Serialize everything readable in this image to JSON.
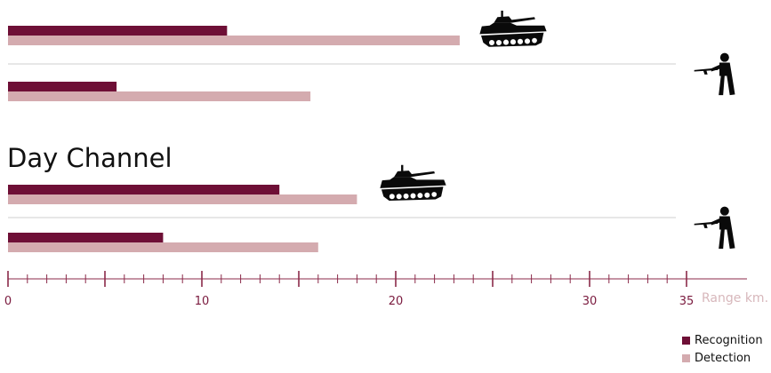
{
  "colors": {
    "recognition": "#6e0f36",
    "detection": "#d4abaf",
    "axis": "#8b2a4a",
    "tick_label": "#7a1a3e",
    "separator": "#cfcfcf",
    "icon": "#0a0a0a"
  },
  "section_title": "Day Channel",
  "range_label": "Range km.",
  "legend": [
    {
      "label": "Recognition",
      "color": "#6e0f36"
    },
    {
      "label": "Detection",
      "color": "#d4abaf"
    }
  ],
  "icons": [
    "tank-icon",
    "soldier-icon",
    "tank-icon",
    "soldier-icon"
  ],
  "chart_data": {
    "type": "bar",
    "orientation": "horizontal",
    "xlim": [
      0,
      35
    ],
    "ticks": [
      0,
      10,
      20,
      30,
      35
    ],
    "grid": false,
    "legend_position": "bottom-right",
    "groups": [
      {
        "target": "tank",
        "recognition": 11.3,
        "detection": 23.3
      },
      {
        "target": "soldier",
        "recognition": 5.6,
        "detection": 15.6
      },
      {
        "section": "Day Channel",
        "target": "tank",
        "recognition": 14.0,
        "detection": 18.0
      },
      {
        "section": "Day Channel",
        "target": "soldier",
        "recognition": 8.0,
        "detection": 16.0
      }
    ],
    "series": [
      {
        "name": "Recognition"
      },
      {
        "name": "Detection"
      }
    ]
  }
}
